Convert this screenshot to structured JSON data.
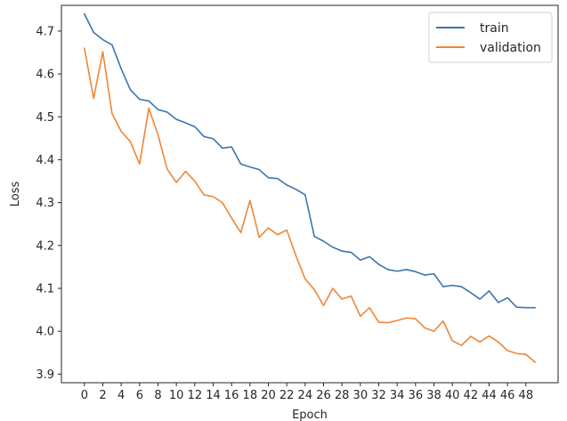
{
  "chart_data": {
    "type": "line",
    "xlabel": "Epoch",
    "ylabel": "Loss",
    "xlim": [
      -2.5,
      51.5
    ],
    "ylim": [
      3.88,
      4.76
    ],
    "xticks": [
      0,
      2,
      4,
      6,
      8,
      10,
      12,
      14,
      16,
      18,
      20,
      22,
      24,
      26,
      28,
      30,
      32,
      34,
      36,
      38,
      40,
      42,
      44,
      46,
      48
    ],
    "yticks": [
      3.9,
      4.0,
      4.1,
      4.2,
      4.3,
      4.4,
      4.5,
      4.6,
      4.7
    ],
    "ytick_labels": [
      "3.9",
      "4.0",
      "4.1",
      "4.2",
      "4.3",
      "4.4",
      "4.5",
      "4.6",
      "4.7"
    ],
    "grid": false,
    "legend_position": "top-right",
    "x": [
      0,
      1,
      2,
      3,
      4,
      5,
      6,
      7,
      8,
      9,
      10,
      11,
      12,
      13,
      14,
      15,
      16,
      17,
      18,
      19,
      20,
      21,
      22,
      23,
      24,
      25,
      26,
      27,
      28,
      29,
      30,
      31,
      32,
      33,
      34,
      35,
      36,
      37,
      38,
      39,
      40,
      41,
      42,
      43,
      44,
      45,
      46,
      47,
      48,
      49
    ],
    "series": [
      {
        "name": "train",
        "color": "#3b75af",
        "values": [
          4.74,
          4.697,
          4.68,
          4.668,
          4.612,
          4.563,
          4.541,
          4.537,
          4.517,
          4.511,
          4.494,
          4.486,
          4.477,
          4.454,
          4.449,
          4.427,
          4.43,
          4.39,
          4.383,
          4.377,
          4.358,
          4.356,
          4.341,
          4.331,
          4.318,
          4.221,
          4.21,
          4.196,
          4.187,
          4.184,
          4.166,
          4.174,
          4.156,
          4.144,
          4.14,
          4.144,
          4.139,
          4.131,
          4.134,
          4.104,
          4.107,
          4.104,
          4.09,
          4.075,
          4.094,
          4.067,
          4.078,
          4.056,
          4.055,
          4.055
        ]
      },
      {
        "name": "validation",
        "color": "#ef8636",
        "values": [
          4.66,
          4.543,
          4.652,
          4.508,
          4.466,
          4.442,
          4.39,
          4.52,
          4.458,
          4.378,
          4.347,
          4.373,
          4.35,
          4.318,
          4.314,
          4.3,
          4.264,
          4.23,
          4.305,
          4.219,
          4.241,
          4.225,
          4.236,
          4.176,
          4.122,
          4.097,
          4.06,
          4.1,
          4.075,
          4.082,
          4.035,
          4.055,
          4.021,
          4.02,
          4.025,
          4.031,
          4.029,
          4.008,
          4.0,
          4.024,
          3.978,
          3.967,
          3.988,
          3.975,
          3.989,
          3.975,
          3.955,
          3.948,
          3.946,
          3.928
        ]
      }
    ]
  }
}
